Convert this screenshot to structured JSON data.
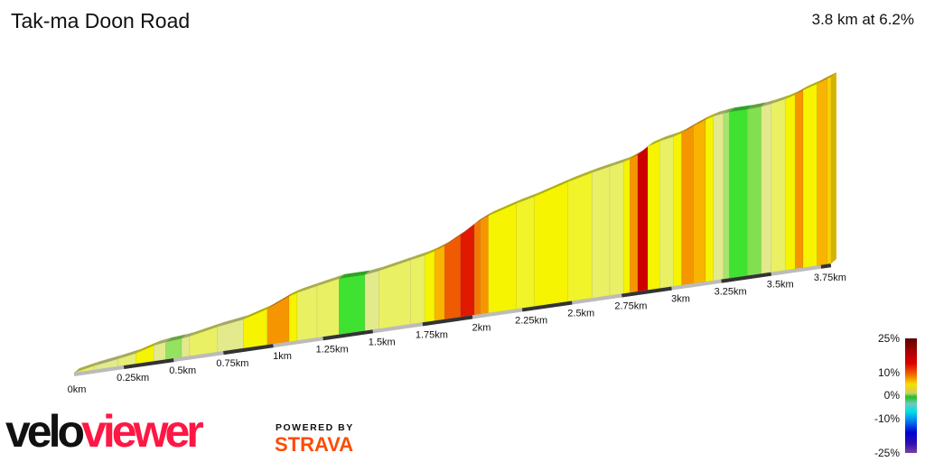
{
  "header": {
    "title": "Tak-ma Doon Road",
    "summary": "3.8 km at 6.2%"
  },
  "chart_data": {
    "type": "area",
    "title": "Tak-ma Doon Road",
    "distance_km": 3.8,
    "average_grade_pct": 6.2,
    "x_ticks": [
      "0km",
      "0.25km",
      "0.5km",
      "0.75km",
      "1km",
      "1.25km",
      "1.5km",
      "1.75km",
      "2km",
      "2.25km",
      "2.5km",
      "2.75km",
      "3km",
      "3.25km",
      "3.5km",
      "3.75km"
    ],
    "x_tick_values": [
      0,
      0.25,
      0.5,
      0.75,
      1,
      1.25,
      1.5,
      1.75,
      2,
      2.25,
      2.5,
      2.75,
      3,
      3.25,
      3.5,
      3.75
    ],
    "segments_km_grade": [
      [
        0,
        0.1,
        4
      ],
      [
        0.1,
        0.22,
        3
      ],
      [
        0.22,
        0.31,
        3.5
      ],
      [
        0.31,
        0.4,
        6
      ],
      [
        0.4,
        0.46,
        3
      ],
      [
        0.46,
        0.54,
        1.5
      ],
      [
        0.54,
        0.58,
        3
      ],
      [
        0.58,
        0.72,
        4
      ],
      [
        0.72,
        0.85,
        3
      ],
      [
        0.85,
        0.97,
        6
      ],
      [
        0.97,
        1.08,
        9
      ],
      [
        1.08,
        1.12,
        6
      ],
      [
        1.12,
        1.22,
        4
      ],
      [
        1.22,
        1.33,
        4
      ],
      [
        1.33,
        1.46,
        0
      ],
      [
        1.46,
        1.53,
        3
      ],
      [
        1.53,
        1.69,
        4
      ],
      [
        1.69,
        1.76,
        4
      ],
      [
        1.76,
        1.81,
        6
      ],
      [
        1.81,
        1.86,
        8
      ],
      [
        1.86,
        1.94,
        11
      ],
      [
        1.94,
        2.01,
        13
      ],
      [
        2.01,
        2.04,
        10
      ],
      [
        2.04,
        2.08,
        9
      ],
      [
        2.08,
        2.22,
        6
      ],
      [
        2.22,
        2.31,
        5
      ],
      [
        2.31,
        2.48,
        6
      ],
      [
        2.48,
        2.6,
        5
      ],
      [
        2.6,
        2.69,
        4
      ],
      [
        2.69,
        2.76,
        4
      ],
      [
        2.76,
        2.79,
        6
      ],
      [
        2.79,
        2.83,
        9
      ],
      [
        2.83,
        2.88,
        14
      ],
      [
        2.88,
        2.94,
        6
      ],
      [
        2.94,
        3.01,
        4
      ],
      [
        3.01,
        3.05,
        6
      ],
      [
        3.05,
        3.11,
        9
      ],
      [
        3.11,
        3.17,
        8
      ],
      [
        3.17,
        3.21,
        6
      ],
      [
        3.21,
        3.26,
        3
      ],
      [
        3.26,
        3.29,
        2
      ],
      [
        3.29,
        3.38,
        0
      ],
      [
        3.38,
        3.45,
        1
      ],
      [
        3.45,
        3.5,
        3
      ],
      [
        3.5,
        3.57,
        4
      ],
      [
        3.57,
        3.62,
        6
      ],
      [
        3.62,
        3.66,
        9
      ],
      [
        3.66,
        3.73,
        6
      ],
      [
        3.73,
        3.78,
        8
      ],
      [
        3.78,
        3.8,
        7
      ]
    ],
    "color_scale": {
      "labels": [
        "25%",
        "10%",
        "0%",
        "-10%",
        "-25%"
      ],
      "values": [
        25,
        10,
        0,
        -10,
        -25
      ]
    }
  },
  "legend": {
    "labels": [
      "25%",
      "10%",
      "0%",
      "-10%",
      "-25%"
    ]
  },
  "branding": {
    "logo_velo": "velo",
    "logo_viewer": "viewer",
    "powered_by": "POWERED BY",
    "strava": "STRAVA"
  }
}
